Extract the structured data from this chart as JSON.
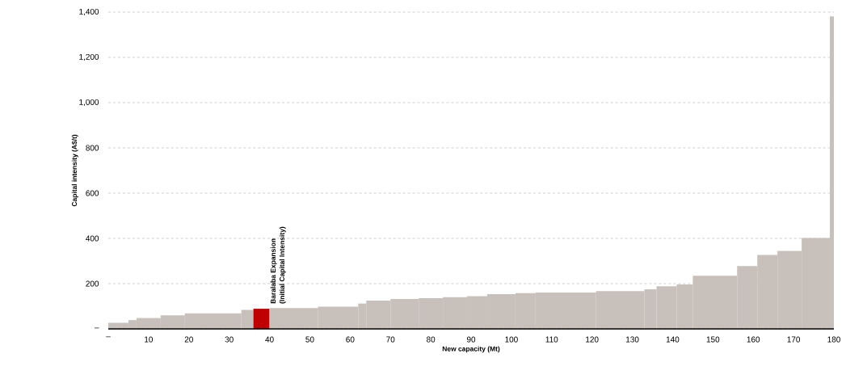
{
  "chart_data": {
    "type": "histogram",
    "xlabel": "New capacity (Mt)",
    "ylabel": "Capital intensity (A$/t)",
    "bins": [
      0,
      5,
      7,
      13,
      19,
      33,
      36,
      40,
      52,
      62,
      64,
      70,
      77,
      83,
      89,
      94,
      101,
      106,
      121,
      133,
      136,
      141,
      145,
      156,
      161,
      166,
      172,
      179,
      180
    ],
    "values": [
      27,
      39,
      48,
      60,
      69,
      84,
      89,
      92,
      98,
      112,
      125,
      132,
      136,
      140,
      145,
      154,
      158,
      161,
      167,
      175,
      188,
      196,
      235,
      278,
      327,
      345,
      402,
      1381
    ],
    "colors": [
      "#c8c0bb",
      "#c8c0bb",
      "#c8c0bb",
      "#c8c0bb",
      "#c8c0bb",
      "#c8c0bb",
      "#c00000",
      "#c8c0bb",
      "#c8c0bb",
      "#c8c0bb",
      "#c8c0bb",
      "#c8c0bb",
      "#c8c0bb",
      "#c8c0bb",
      "#c8c0bb",
      "#c8c0bb",
      "#c8c0bb",
      "#c8c0bb",
      "#c8c0bb",
      "#c8c0bb",
      "#c8c0bb",
      "#c8c0bb",
      "#c8c0bb",
      "#c8c0bb",
      "#c8c0bb",
      "#c8c0bb",
      "#c8c0bb",
      "#c8c0bb"
    ],
    "xlim": [
      0,
      180
    ],
    "xticks": [
      {
        "value": 0,
        "label": "–"
      },
      10,
      20,
      30,
      40,
      50,
      60,
      70,
      80,
      90,
      100,
      110,
      120,
      130,
      140,
      150,
      160,
      170,
      180
    ],
    "ylim": [
      0,
      1400
    ],
    "yticks": [
      {
        "value": 0,
        "label": "–"
      },
      {
        "value": 200,
        "label": "200"
      },
      {
        "value": 400,
        "label": "400"
      },
      {
        "value": 600,
        "label": "600"
      },
      {
        "value": 800,
        "label": "800"
      },
      {
        "value": 1000,
        "label": "1,000"
      },
      {
        "value": 1200,
        "label": "1,200"
      },
      {
        "value": 1400,
        "label": "1,400"
      }
    ],
    "grid": "y",
    "annotations": [
      {
        "text": "Baralaba Expansion",
        "x": 38,
        "y": 89
      },
      {
        "text": "(Initial Capital Intensity)",
        "x": 38,
        "y": 89
      }
    ]
  }
}
